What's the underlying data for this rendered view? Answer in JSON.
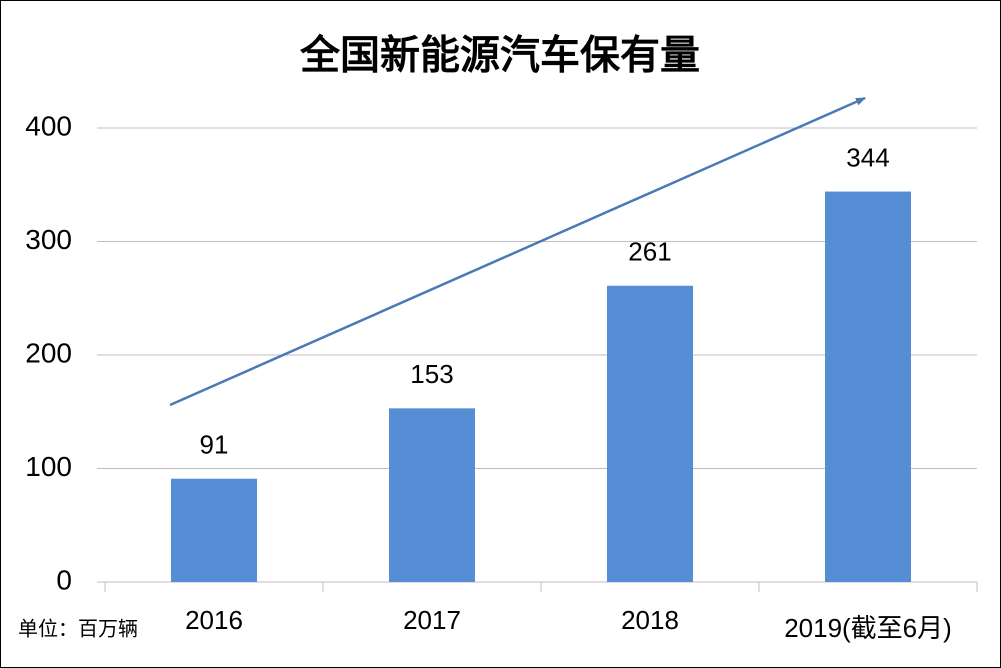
{
  "chart_data": {
    "type": "bar",
    "title": "全国新能源汽车保有量",
    "unit_note": "单位：百万辆",
    "categories": [
      "2016",
      "2017",
      "2018",
      "2019(截至6月)"
    ],
    "values": [
      91,
      153,
      261,
      344
    ],
    "color": "#558ed5",
    "ylim": [
      0,
      400
    ],
    "yticks": [
      0,
      100,
      200,
      300,
      400
    ],
    "grid": true
  }
}
